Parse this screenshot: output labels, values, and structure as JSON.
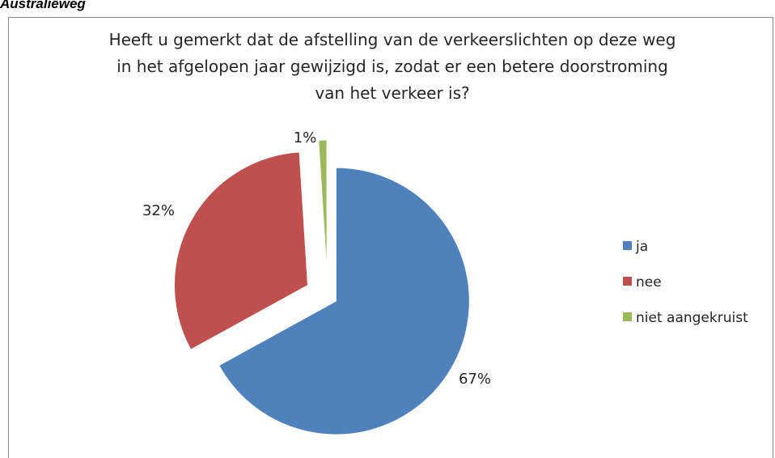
{
  "page_heading": "Australiëweg",
  "chart_data": {
    "type": "pie",
    "title": [
      "Heeft u gemerkt dat de afstelling van de verkeerslichten op deze weg",
      "in het afgelopen jaar gewijzigd is, zodat er een betere doorstroming",
      "van het verkeer is?"
    ],
    "legend_position": "right",
    "exploded": true,
    "slices": [
      {
        "label": "ja",
        "value": 67,
        "data_label": "67%",
        "color": "#4F81BD"
      },
      {
        "label": "nee",
        "value": 32,
        "data_label": "32%",
        "color": "#C0504D"
      },
      {
        "label": "niet aangekruist",
        "value": 1,
        "data_label": "1%",
        "color": "#9BBB59"
      }
    ]
  }
}
